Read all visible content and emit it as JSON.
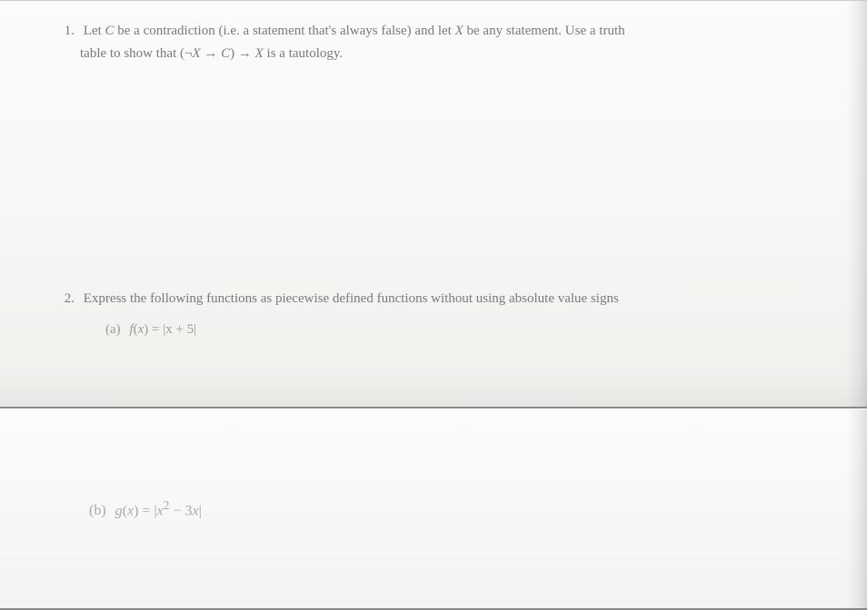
{
  "problem1": {
    "number": "1.",
    "text_line1_a": "Let ",
    "text_line1_var1": "C",
    "text_line1_b": " be a contradiction (i.e. a statement that's always false) and let ",
    "text_line1_var2": "X",
    "text_line1_c": " be any statement. Use a truth",
    "text_line2_a": "table to show that (¬",
    "text_line2_var1": "X",
    "text_line2_b": " → ",
    "text_line2_var2": "C",
    "text_line2_c": ") → ",
    "text_line2_var3": "X",
    "text_line2_d": " is a tautology."
  },
  "problem2": {
    "number": "2.",
    "text": "Express the following functions as piecewise defined functions without using absolute value signs",
    "sub_a": {
      "label": "(a)",
      "fn_name": "f",
      "fn_var": "x",
      "expr": " = |x + 5|"
    },
    "sub_b": {
      "label": "(b)",
      "fn_name": "g",
      "fn_var": "x",
      "expr_a": " = |",
      "expr_var": "x",
      "expr_sup": "2",
      "expr_b": " − 3",
      "expr_var2": "x",
      "expr_c": "|"
    }
  }
}
